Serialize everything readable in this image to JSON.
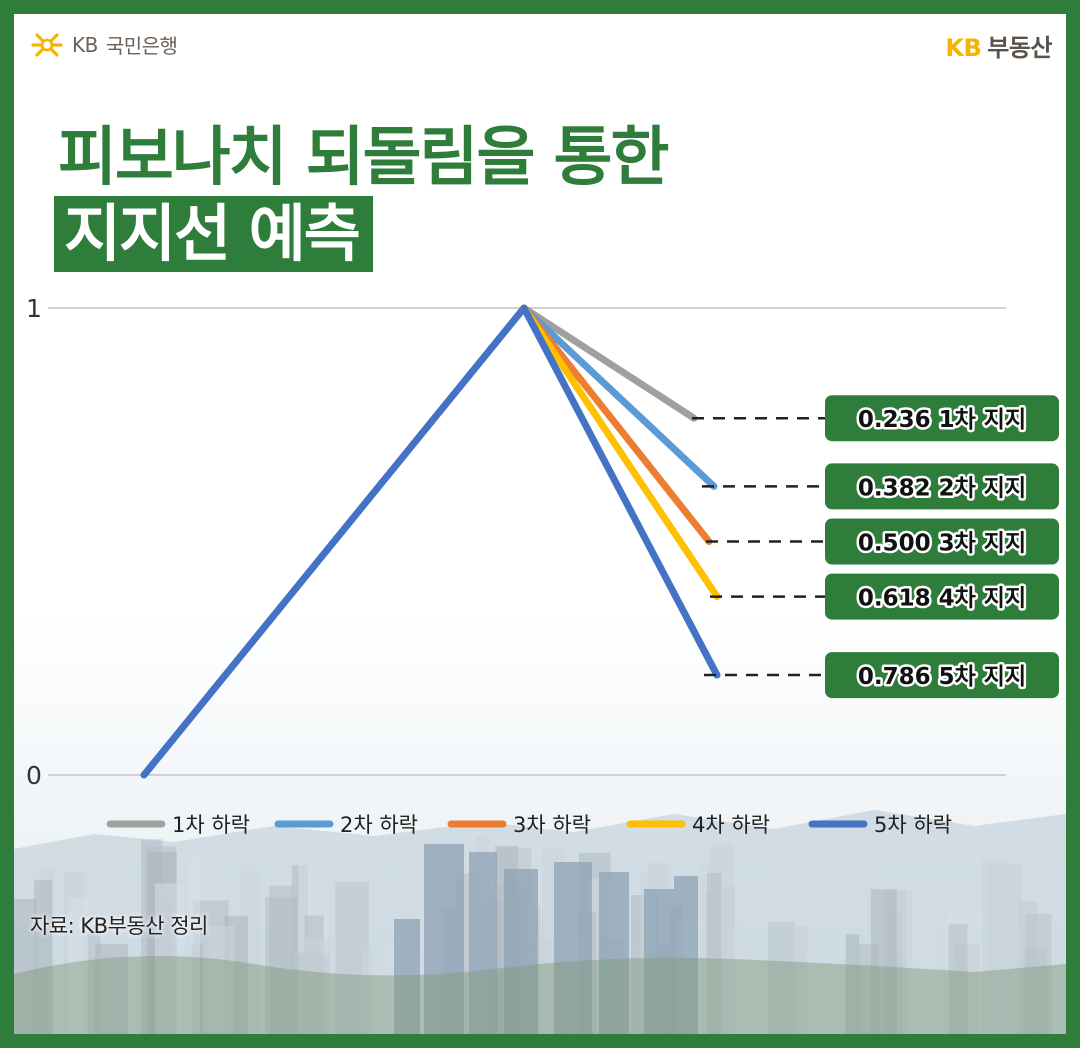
{
  "brand": {
    "left_name": "국민은행",
    "left_kb": "KB",
    "right_kb": "KB",
    "right_name": "부동산"
  },
  "title": {
    "line1": "피보나치 되돌림을 통한",
    "line2": "지지선 예측"
  },
  "source": "자료: KB부동산 정리",
  "colors": {
    "frame_green": "#2f7d3b",
    "label_green": "#2f7d3b",
    "kb_yellow": "#f5b400",
    "grid": "#d0d0d0"
  },
  "chart_data": {
    "type": "line",
    "y_ticks": [
      "0",
      "1"
    ],
    "ylim": [
      0,
      1
    ],
    "grid": true,
    "legend_position": "bottom",
    "start_point": 0,
    "peak_point": 1,
    "series": [
      {
        "name": "1차 하락",
        "color": "#a0a0a0",
        "end_value": 0.764,
        "label": "0.236 1차 지지"
      },
      {
        "name": "2차 하락",
        "color": "#5b9bd5",
        "end_value": 0.618,
        "label": "0.382 2차 지지"
      },
      {
        "name": "3차 하락",
        "color": "#ed7d31",
        "end_value": 0.5,
        "label": "0.500 3차 지지"
      },
      {
        "name": "4차 하락",
        "color": "#ffc000",
        "end_value": 0.382,
        "label": "0.618 4차 지지"
      },
      {
        "name": "5차 하락",
        "color": "#4472c4",
        "end_value": 0.214,
        "label": "0.786 5차 지지"
      }
    ]
  }
}
